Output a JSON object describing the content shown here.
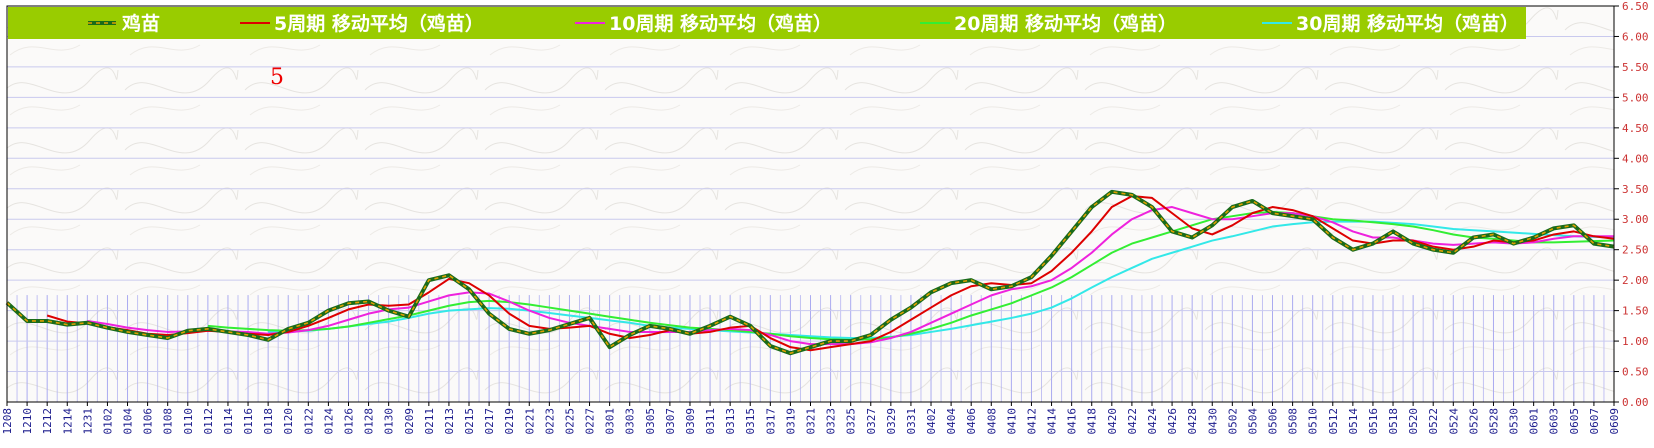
{
  "colors": {
    "background": "#fbfaf9",
    "legend_bar": "#99cc00",
    "legend_text": "#ffffff",
    "grid_h": "#c9c9ee",
    "grid_v": "#aaaaf0",
    "axis_text": "#cc3333",
    "x_tick_text": "#1a1a8c",
    "frame": "#000000"
  },
  "annotation": "5",
  "chart_data": {
    "type": "line",
    "title": "",
    "xlabel": "",
    "ylabel": "",
    "ylim": [
      0,
      6.5
    ],
    "yticks": [
      "0.00",
      "0.50",
      "1.00",
      "1.50",
      "2.00",
      "2.50",
      "3.00",
      "3.50",
      "4.00",
      "4.50",
      "5.00",
      "5.50",
      "6.00",
      "6.50"
    ],
    "grid": true,
    "legend_position": "top",
    "x": [
      "1208",
      "1210",
      "1212",
      "1214",
      "1231",
      "0102",
      "0104",
      "0106",
      "0108",
      "0110",
      "0112",
      "0114",
      "0116",
      "0118",
      "0120",
      "0122",
      "0124",
      "0126",
      "0128",
      "0130",
      "0209",
      "0211",
      "0213",
      "0215",
      "0217",
      "0219",
      "0221",
      "0223",
      "0225",
      "0227",
      "0301",
      "0303",
      "0305",
      "0307",
      "0309",
      "0311",
      "0313",
      "0315",
      "0317",
      "0319",
      "0321",
      "0323",
      "0325",
      "0327",
      "0329",
      "0331",
      "0402",
      "0404",
      "0406",
      "0408",
      "0410",
      "0412",
      "0414",
      "0416",
      "0418",
      "0420",
      "0422",
      "0424",
      "0426",
      "0428",
      "0430",
      "0502",
      "0504",
      "0506",
      "0508",
      "0510",
      "0512",
      "0514",
      "0516",
      "0518",
      "0520",
      "0522",
      "0524",
      "0526",
      "0528",
      "0530",
      "0601",
      "0603",
      "0605",
      "0607",
      "0609"
    ],
    "series": [
      {
        "name": "鸡苗",
        "color": "#1a6b1a",
        "dash_color": "#e0a000",
        "values": [
          1.63,
          1.33,
          1.33,
          1.27,
          1.3,
          1.22,
          1.15,
          1.1,
          1.05,
          1.17,
          1.2,
          1.15,
          1.1,
          1.02,
          1.2,
          1.3,
          1.5,
          1.62,
          1.65,
          1.5,
          1.4,
          2.0,
          2.08,
          1.85,
          1.45,
          1.2,
          1.12,
          1.18,
          1.28,
          1.38,
          0.9,
          1.1,
          1.25,
          1.2,
          1.12,
          1.25,
          1.4,
          1.25,
          0.92,
          0.8,
          0.9,
          1.0,
          1.0,
          1.1,
          1.35,
          1.55,
          1.8,
          1.95,
          2.0,
          1.85,
          1.9,
          2.05,
          2.4,
          2.8,
          3.2,
          3.45,
          3.4,
          3.2,
          2.8,
          2.7,
          2.9,
          3.2,
          3.3,
          3.1,
          3.05,
          3.0,
          2.7,
          2.5,
          2.6,
          2.8,
          2.6,
          2.5,
          2.45,
          2.7,
          2.75,
          2.6,
          2.7,
          2.85,
          2.9,
          2.6,
          2.55
        ]
      },
      {
        "name": "5周期 移动平均（鸡苗）",
        "color": "#dd0000",
        "values": [
          null,
          null,
          1.42,
          1.32,
          1.29,
          1.23,
          1.18,
          1.12,
          1.1,
          1.13,
          1.17,
          1.15,
          1.12,
          1.1,
          1.15,
          1.25,
          1.38,
          1.52,
          1.6,
          1.58,
          1.6,
          1.8,
          2.02,
          1.95,
          1.75,
          1.45,
          1.25,
          1.2,
          1.22,
          1.25,
          1.12,
          1.05,
          1.1,
          1.18,
          1.12,
          1.15,
          1.22,
          1.25,
          1.05,
          0.9,
          0.85,
          0.9,
          0.95,
          1.0,
          1.15,
          1.35,
          1.55,
          1.75,
          1.9,
          1.95,
          1.92,
          1.95,
          2.15,
          2.45,
          2.8,
          3.2,
          3.38,
          3.35,
          3.1,
          2.85,
          2.75,
          2.9,
          3.1,
          3.2,
          3.15,
          3.05,
          2.85,
          2.65,
          2.6,
          2.65,
          2.65,
          2.55,
          2.5,
          2.55,
          2.65,
          2.62,
          2.65,
          2.75,
          2.8,
          2.72,
          2.68
        ]
      },
      {
        "name": "10周期 移动平均（鸡苗）",
        "color": "#ee22dd",
        "values": [
          null,
          null,
          null,
          null,
          1.33,
          1.28,
          1.22,
          1.18,
          1.15,
          1.16,
          1.17,
          1.16,
          1.15,
          1.12,
          1.14,
          1.18,
          1.25,
          1.35,
          1.45,
          1.52,
          1.55,
          1.65,
          1.75,
          1.8,
          1.78,
          1.65,
          1.5,
          1.38,
          1.3,
          1.25,
          1.2,
          1.15,
          1.15,
          1.15,
          1.15,
          1.18,
          1.2,
          1.18,
          1.1,
          1.0,
          0.95,
          0.95,
          0.95,
          0.98,
          1.05,
          1.15,
          1.3,
          1.45,
          1.6,
          1.75,
          1.85,
          1.9,
          2.0,
          2.2,
          2.45,
          2.75,
          3.0,
          3.15,
          3.2,
          3.1,
          3.0,
          3.0,
          3.05,
          3.1,
          3.1,
          3.05,
          2.95,
          2.8,
          2.7,
          2.7,
          2.65,
          2.6,
          2.58,
          2.6,
          2.62,
          2.6,
          2.62,
          2.68,
          2.72,
          2.72,
          2.72
        ]
      },
      {
        "name": "20周期 移动平均（鸡苗）",
        "color": "#33ee33",
        "values": [
          null,
          null,
          null,
          null,
          null,
          null,
          null,
          null,
          null,
          null,
          1.25,
          1.22,
          1.2,
          1.18,
          1.17,
          1.18,
          1.2,
          1.24,
          1.3,
          1.36,
          1.42,
          1.5,
          1.58,
          1.64,
          1.66,
          1.64,
          1.6,
          1.55,
          1.5,
          1.45,
          1.4,
          1.35,
          1.3,
          1.26,
          1.22,
          1.2,
          1.18,
          1.15,
          1.12,
          1.08,
          1.05,
          1.03,
          1.02,
          1.03,
          1.06,
          1.12,
          1.2,
          1.3,
          1.42,
          1.52,
          1.62,
          1.75,
          1.88,
          2.05,
          2.25,
          2.45,
          2.6,
          2.7,
          2.8,
          2.9,
          3.0,
          3.05,
          3.1,
          3.12,
          3.1,
          3.05,
          3.0,
          2.98,
          2.95,
          2.92,
          2.88,
          2.82,
          2.75,
          2.7,
          2.68,
          2.65,
          2.62,
          2.62,
          2.63,
          2.64,
          2.65
        ]
      },
      {
        "name": "30周期 移动平均（鸡苗）",
        "color": "#33e8e8",
        "values": [
          null,
          null,
          null,
          null,
          null,
          null,
          null,
          null,
          null,
          null,
          null,
          null,
          null,
          1.15,
          1.16,
          1.17,
          1.2,
          1.24,
          1.28,
          1.32,
          1.38,
          1.45,
          1.5,
          1.52,
          1.54,
          1.53,
          1.5,
          1.46,
          1.42,
          1.38,
          1.34,
          1.3,
          1.25,
          1.22,
          1.2,
          1.18,
          1.16,
          1.14,
          1.12,
          1.1,
          1.08,
          1.06,
          1.05,
          1.05,
          1.07,
          1.1,
          1.15,
          1.2,
          1.26,
          1.32,
          1.38,
          1.45,
          1.55,
          1.7,
          1.88,
          2.05,
          2.2,
          2.35,
          2.45,
          2.55,
          2.65,
          2.72,
          2.8,
          2.88,
          2.92,
          2.95,
          2.96,
          2.96,
          2.96,
          2.94,
          2.92,
          2.88,
          2.84,
          2.82,
          2.8,
          2.78,
          2.76,
          2.74,
          2.72,
          2.71,
          2.7
        ]
      }
    ]
  }
}
